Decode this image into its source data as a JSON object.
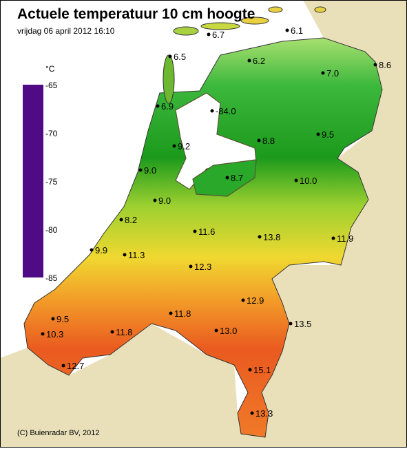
{
  "header": {
    "title": "Actuele temperatuur 10 cm hoogte",
    "timestamp": "vrijdag 06 april 2012 16:10"
  },
  "legend": {
    "unit": "°C",
    "ticks": [
      "-65",
      "-70",
      "-75",
      "-80",
      "-85"
    ]
  },
  "stations": [
    "6.7",
    "6.1",
    "6.5",
    "8.6",
    "6.2",
    "7.0",
    "6.9",
    "-84.0",
    "9.2",
    "8.8",
    "9.5",
    "9.0",
    "8.7",
    "10.0",
    "9.0",
    "8.2",
    "11.6",
    "13.8",
    "11.9",
    "9.9",
    "11.3",
    "12.3",
    "12.9",
    "11.8",
    "13.0",
    "13.5",
    "9.5",
    "10.3",
    "11.8",
    "15.1",
    "12.7",
    "13.3"
  ],
  "footer": "(C) Buienradar BV, 2012"
}
